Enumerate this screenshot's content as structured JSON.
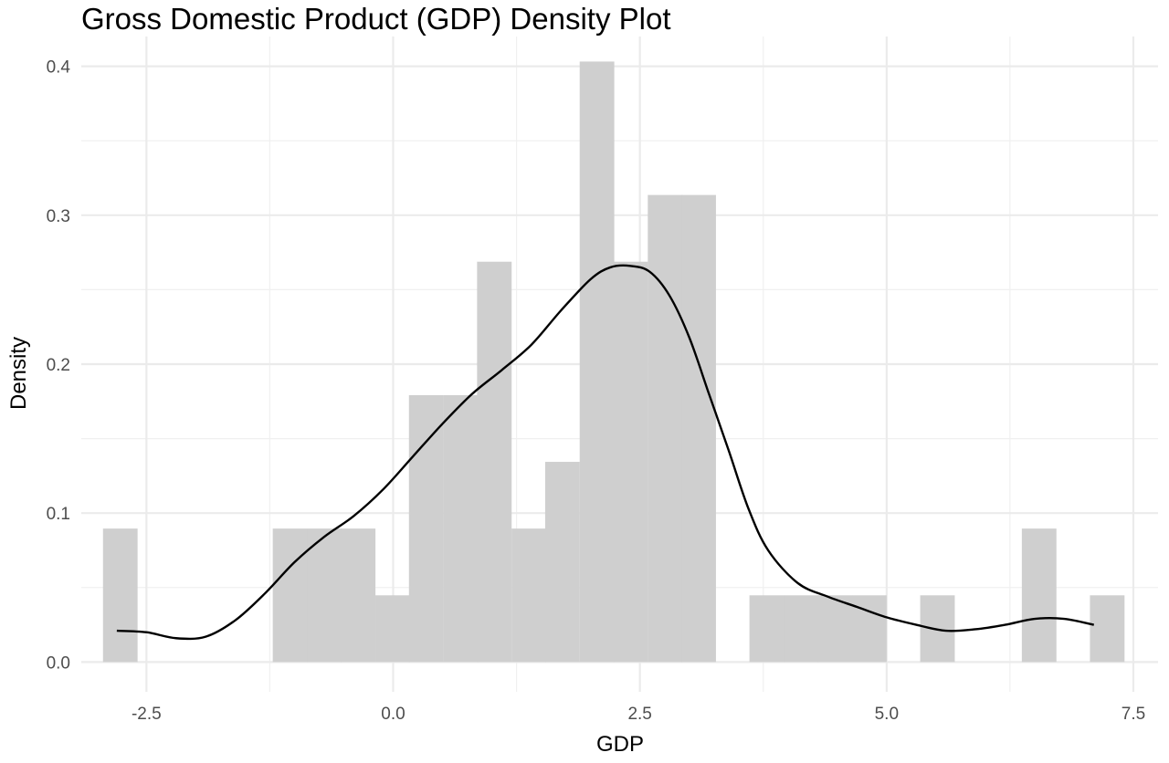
{
  "chart_data": {
    "type": "bar",
    "title": "Gross Domestic Product (GDP) Density Plot",
    "xlabel": "GDP",
    "ylabel": "Density",
    "xlim": [
      -3.16,
      7.75
    ],
    "ylim": [
      -0.02,
      0.42
    ],
    "x_ticks": [
      -2.5,
      0.0,
      2.5,
      5.0,
      7.5
    ],
    "x_tick_labels": [
      "-2.5",
      "0.0",
      "2.5",
      "5.0",
      "7.5"
    ],
    "y_ticks": [
      0.0,
      0.1,
      0.2,
      0.3,
      0.4
    ],
    "y_tick_labels": [
      "0.0",
      "0.1",
      "0.2",
      "0.3",
      "0.4"
    ],
    "grid": true,
    "histogram": {
      "bin_width": 0.345,
      "bins": [
        {
          "start": -2.94,
          "density": 0.0896
        },
        {
          "start": -1.22,
          "density": 0.0896
        },
        {
          "start": -0.87,
          "density": 0.0896
        },
        {
          "start": -0.53,
          "density": 0.0896
        },
        {
          "start": -0.18,
          "density": 0.0448
        },
        {
          "start": 0.16,
          "density": 0.1792
        },
        {
          "start": 0.51,
          "density": 0.1792
        },
        {
          "start": 0.85,
          "density": 0.2688
        },
        {
          "start": 1.2,
          "density": 0.0896
        },
        {
          "start": 1.54,
          "density": 0.1344
        },
        {
          "start": 1.89,
          "density": 0.4032
        },
        {
          "start": 2.23,
          "density": 0.2688
        },
        {
          "start": 2.58,
          "density": 0.3136
        },
        {
          "start": 2.92,
          "density": 0.3136
        },
        {
          "start": 3.61,
          "density": 0.0448
        },
        {
          "start": 3.96,
          "density": 0.0448
        },
        {
          "start": 4.3,
          "density": 0.0448
        },
        {
          "start": 4.65,
          "density": 0.0448
        },
        {
          "start": 5.34,
          "density": 0.0448
        },
        {
          "start": 6.37,
          "density": 0.0896
        },
        {
          "start": 7.06,
          "density": 0.0448
        }
      ],
      "color": "#cfcfcf"
    },
    "density_curve": {
      "color": "#000000",
      "x": [
        -2.8,
        -2.5,
        -2.2,
        -1.9,
        -1.6,
        -1.3,
        -1.0,
        -0.7,
        -0.4,
        -0.1,
        0.2,
        0.5,
        0.8,
        1.1,
        1.4,
        1.7,
        2.0,
        2.2,
        2.4,
        2.6,
        2.8,
        3.0,
        3.2,
        3.4,
        3.6,
        3.8,
        4.1,
        4.4,
        4.7,
        5.0,
        5.3,
        5.6,
        5.9,
        6.2,
        6.5,
        6.8,
        7.1
      ],
      "y": [
        0.021,
        0.02,
        0.016,
        0.017,
        0.028,
        0.046,
        0.067,
        0.084,
        0.098,
        0.116,
        0.138,
        0.16,
        0.18,
        0.196,
        0.213,
        0.236,
        0.257,
        0.265,
        0.266,
        0.262,
        0.246,
        0.218,
        0.18,
        0.142,
        0.103,
        0.075,
        0.053,
        0.044,
        0.037,
        0.03,
        0.025,
        0.021,
        0.022,
        0.025,
        0.029,
        0.029,
        0.025
      ]
    }
  }
}
